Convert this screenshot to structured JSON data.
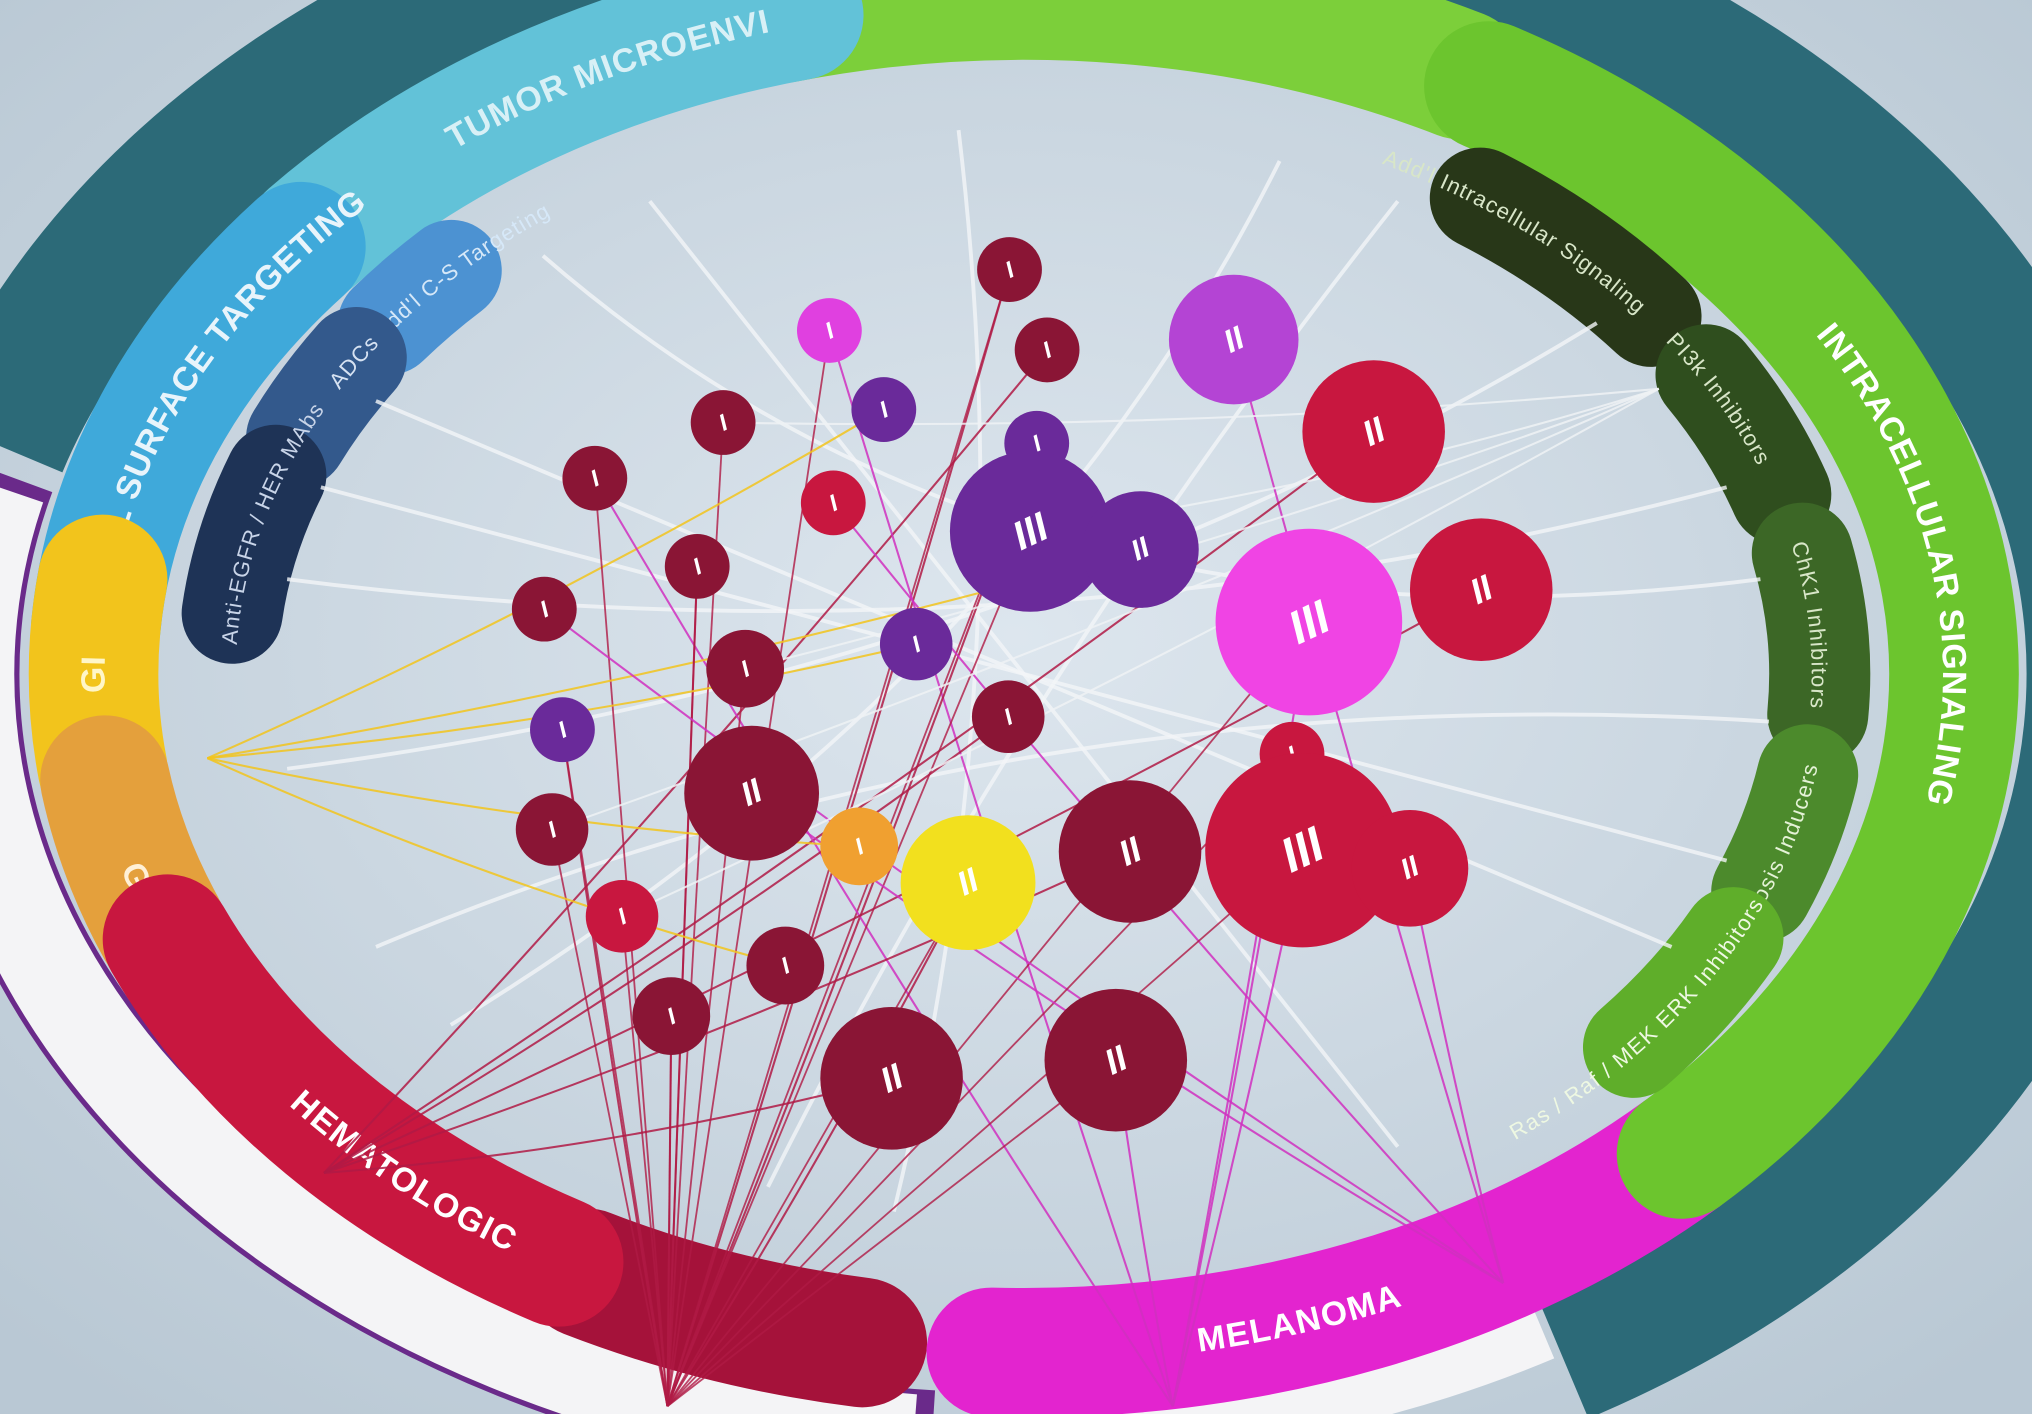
{
  "rings": {
    "outer": [
      {
        "label": "TUMOR MICROENVI"
      },
      {
        "label": "CELL SURFACE TARGETING"
      },
      {
        "label": "GI"
      },
      {
        "label": "GU"
      },
      {
        "label": "HEMATOLOGIC"
      },
      {
        "label": "MELANOMA"
      },
      {
        "label": "INTRACELLULAR SIGNALING"
      }
    ],
    "inner": [
      {
        "label": "Add'l C-S Targeting"
      },
      {
        "label": "ADCs"
      },
      {
        "label": "Anti-EGFR / HER MAbs"
      },
      {
        "label": "Add'l Intracellular Signaling"
      },
      {
        "label": "PI3k Inhibitors"
      },
      {
        "label": "ChK1 Inhibitors"
      },
      {
        "label": "Apoptosis Inducers"
      },
      {
        "label": "Ras / Raf / MEK ERK Inhibitors"
      }
    ]
  },
  "nodes": [
    {
      "label": "I"
    },
    {
      "label": "I"
    },
    {
      "label": "I"
    },
    {
      "label": "II"
    },
    {
      "label": "I"
    },
    {
      "label": "I"
    },
    {
      "label": "I"
    },
    {
      "label": "II"
    },
    {
      "label": "I"
    },
    {
      "label": "I"
    },
    {
      "label": "III"
    },
    {
      "label": "II"
    },
    {
      "label": "I"
    },
    {
      "label": "II"
    },
    {
      "label": "III"
    },
    {
      "label": "I"
    },
    {
      "label": "I"
    },
    {
      "label": "I"
    },
    {
      "label": "I"
    },
    {
      "label": "I"
    },
    {
      "label": "I"
    },
    {
      "label": "II"
    },
    {
      "label": "I"
    },
    {
      "label": "I"
    },
    {
      "label": "II"
    },
    {
      "label": "II"
    },
    {
      "label": "III"
    },
    {
      "label": "II"
    },
    {
      "label": "I"
    },
    {
      "label": "I"
    },
    {
      "label": "I"
    },
    {
      "label": "II"
    },
    {
      "label": "II"
    }
  ]
}
